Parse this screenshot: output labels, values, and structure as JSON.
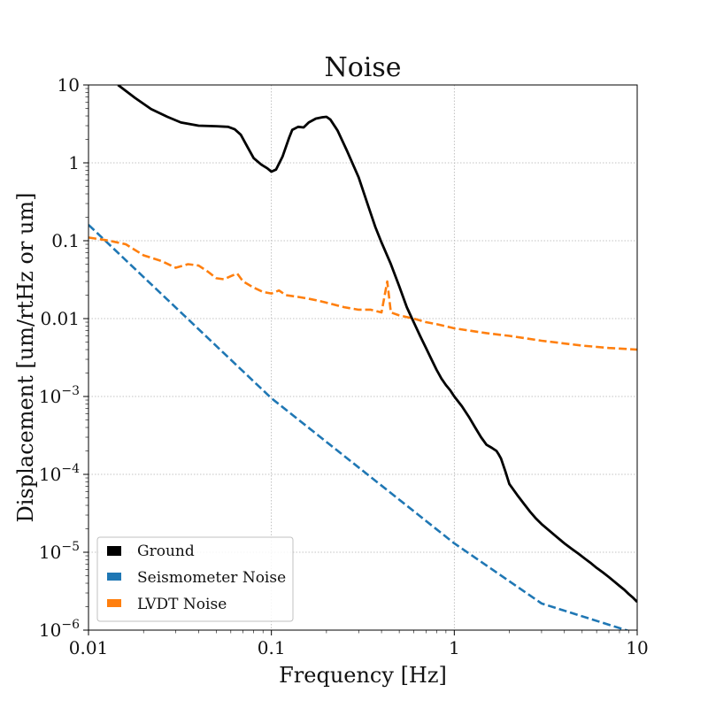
{
  "chart_data": {
    "type": "line",
    "title": "Noise",
    "xlabel": "Frequency [Hz]",
    "ylabel": "Displacement [um/rtHz or um]",
    "xscale": "log",
    "yscale": "log",
    "xlim": [
      0.01,
      10
    ],
    "ylim": [
      1e-06,
      10
    ],
    "grid": true,
    "legend_position": "bottom-left",
    "x_ticks": [
      {
        "value": 0.01,
        "label": "0.01"
      },
      {
        "value": 0.1,
        "label": "0.1"
      },
      {
        "value": 1,
        "label": "1"
      },
      {
        "value": 10,
        "label": "10"
      }
    ],
    "y_ticks": [
      {
        "value": 10,
        "label": "10"
      },
      {
        "value": 1,
        "label": "1"
      },
      {
        "value": 0.1,
        "label": "0.1"
      },
      {
        "value": 0.01,
        "label": "0.01"
      },
      {
        "value": 0.001,
        "label": "10",
        "exp": "−3"
      },
      {
        "value": 0.0001,
        "label": "10",
        "exp": "−4"
      },
      {
        "value": 1e-05,
        "label": "10",
        "exp": "−5"
      },
      {
        "value": 1e-06,
        "label": "10",
        "exp": "−6"
      }
    ],
    "series": [
      {
        "name": "Ground",
        "color": "#000000",
        "style": "solid",
        "width": 2.8,
        "x": [
          0.0145,
          0.018,
          0.022,
          0.027,
          0.032,
          0.04,
          0.05,
          0.058,
          0.063,
          0.068,
          0.074,
          0.08,
          0.088,
          0.095,
          0.1,
          0.106,
          0.115,
          0.125,
          0.13,
          0.14,
          0.15,
          0.16,
          0.175,
          0.19,
          0.2,
          0.21,
          0.23,
          0.26,
          0.3,
          0.34,
          0.37,
          0.4,
          0.45,
          0.5,
          0.55,
          0.6,
          0.65,
          0.7,
          0.75,
          0.8,
          0.85,
          0.9,
          0.95,
          1.0,
          1.1,
          1.2,
          1.3,
          1.4,
          1.5,
          1.6,
          1.7,
          1.75,
          1.8,
          1.9,
          2.0,
          2.2,
          2.4,
          2.6,
          2.8,
          3.0,
          3.3,
          3.6,
          4.0,
          4.4,
          4.8,
          5.2,
          5.6,
          6.0,
          6.5,
          7.0,
          7.5,
          8.0,
          8.5,
          9.0,
          9.5,
          10.0
        ],
        "y": [
          10,
          6.8,
          4.9,
          3.9,
          3.3,
          3.0,
          2.95,
          2.9,
          2.7,
          2.3,
          1.6,
          1.15,
          0.95,
          0.85,
          0.77,
          0.82,
          1.2,
          2.1,
          2.65,
          2.9,
          2.85,
          3.3,
          3.7,
          3.85,
          3.9,
          3.6,
          2.6,
          1.4,
          0.65,
          0.27,
          0.15,
          0.095,
          0.05,
          0.026,
          0.014,
          0.009,
          0.006,
          0.0042,
          0.003,
          0.0022,
          0.0017,
          0.0014,
          0.0012,
          0.001,
          0.00075,
          0.00055,
          0.0004,
          0.0003,
          0.00024,
          0.00022,
          0.0002,
          0.00018,
          0.00016,
          0.00011,
          7.5e-05,
          5.5e-05,
          4.2e-05,
          3.3e-05,
          2.7e-05,
          2.3e-05,
          1.9e-05,
          1.6e-05,
          1.3e-05,
          1.1e-05,
          9.5e-06,
          8.2e-06,
          7.2e-06,
          6.3e-06,
          5.5e-06,
          4.8e-06,
          4.2e-06,
          3.7e-06,
          3.3e-06,
          2.9e-06,
          2.6e-06,
          2.3e-06
        ]
      },
      {
        "name": "Seismometer Noise",
        "color": "#1f77b4",
        "style": "dashed",
        "width": 2.6,
        "x": [
          0.01,
          0.1,
          1,
          3,
          10
        ],
        "y": [
          0.16,
          0.00095,
          1.3e-05,
          2.2e-06,
          9e-07
        ]
      },
      {
        "name": "LVDT Noise",
        "color": "#ff7f0e",
        "style": "dashed",
        "width": 2.6,
        "x": [
          0.01,
          0.013,
          0.016,
          0.02,
          0.025,
          0.03,
          0.035,
          0.04,
          0.045,
          0.05,
          0.055,
          0.06,
          0.065,
          0.07,
          0.08,
          0.09,
          0.1,
          0.11,
          0.12,
          0.14,
          0.16,
          0.18,
          0.2,
          0.25,
          0.3,
          0.35,
          0.4,
          0.43,
          0.45,
          0.5,
          0.6,
          0.7,
          0.8,
          1.0,
          1.5,
          2.0,
          3.0,
          5.0,
          7.0,
          10.0
        ],
        "y": [
          0.11,
          0.1,
          0.09,
          0.065,
          0.055,
          0.045,
          0.05,
          0.048,
          0.04,
          0.033,
          0.032,
          0.035,
          0.038,
          0.03,
          0.025,
          0.022,
          0.021,
          0.023,
          0.02,
          0.019,
          0.018,
          0.017,
          0.016,
          0.014,
          0.013,
          0.013,
          0.012,
          0.03,
          0.012,
          0.011,
          0.01,
          0.009,
          0.0085,
          0.0075,
          0.0065,
          0.006,
          0.0052,
          0.0045,
          0.0042,
          0.004
        ]
      }
    ]
  }
}
